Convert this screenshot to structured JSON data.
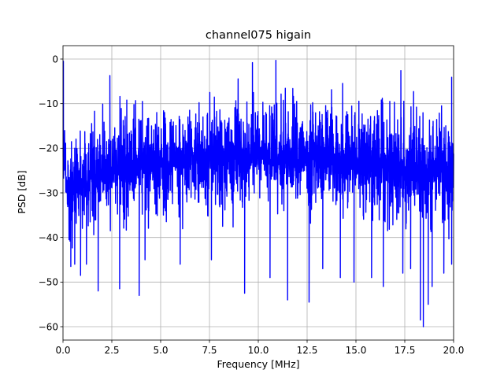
{
  "chart_data": {
    "type": "line",
    "title": "channel075 higain",
    "xlabel": "Frequency [MHz]",
    "ylabel": "PSD [dB]",
    "xlim": [
      0,
      20
    ],
    "ylim": [
      -63,
      3
    ],
    "xticks": [
      0,
      2.5,
      5,
      7.5,
      10,
      12.5,
      15,
      17.5,
      20
    ],
    "xtick_labels": [
      "0.0",
      "2.5",
      "5.0",
      "7.5",
      "10.0",
      "12.5",
      "15.0",
      "17.5",
      "20.0"
    ],
    "yticks": [
      0,
      -10,
      -20,
      -30,
      -40,
      -50,
      -60
    ],
    "ytick_labels": [
      "0",
      "−10",
      "−20",
      "−30",
      "−40",
      "−50",
      "−60"
    ],
    "grid": true,
    "legend": "none",
    "line_color": "#0000ff",
    "series": [
      {
        "style": "dense oscillating trace between upper and lower envelopes",
        "x": [
          0.0,
          0.2,
          0.5,
          1.0,
          1.5,
          2.0,
          2.5,
          3.0,
          3.5,
          4.0,
          4.5,
          5.0,
          5.5,
          6.0,
          6.5,
          7.0,
          7.5,
          8.0,
          8.5,
          9.0,
          9.5,
          10.0,
          10.5,
          11.0,
          11.5,
          12.0,
          12.5,
          13.0,
          13.5,
          14.0,
          14.5,
          15.0,
          15.5,
          16.0,
          16.5,
          17.0,
          17.5,
          18.0,
          18.5,
          19.0,
          19.5,
          20.0
        ],
        "upper": [
          -2,
          -10,
          -8.5,
          -8,
          -6,
          -5.5,
          -5,
          -4.5,
          -4.5,
          -4,
          -3,
          -2.5,
          -2.5,
          -2.2,
          -2,
          -2,
          -2,
          -1.8,
          -1.5,
          -1.5,
          -1.5,
          -1.2,
          -1.2,
          -1.2,
          -1.5,
          -1.5,
          -1.5,
          -1.8,
          -2,
          -2,
          -2.2,
          -2.5,
          -2.5,
          -3,
          -3,
          -3.2,
          -3.5,
          -4,
          -4.5,
          -4.5,
          -4.8,
          -5
        ],
        "lower": [
          -38,
          -47,
          -47,
          -45,
          -44,
          -44,
          -43,
          -43,
          -43,
          -42,
          -42,
          -42,
          -41,
          -41,
          -41,
          -41,
          -41,
          -40,
          -40,
          -40,
          -40,
          -40,
          -40,
          -41,
          -41,
          -41,
          -41,
          -41,
          -41,
          -42,
          -42,
          -42,
          -42,
          -42,
          -43,
          -43,
          -43,
          -44,
          -44,
          -44,
          -44,
          -45
        ]
      }
    ],
    "dips": [
      {
        "x": 0.4,
        "y": -46.5
      },
      {
        "x": 0.6,
        "y": -46
      },
      {
        "x": 0.9,
        "y": -48.5
      },
      {
        "x": 1.2,
        "y": -46
      },
      {
        "x": 1.8,
        "y": -52
      },
      {
        "x": 2.9,
        "y": -51.5
      },
      {
        "x": 3.9,
        "y": -53
      },
      {
        "x": 4.2,
        "y": -45
      },
      {
        "x": 6.0,
        "y": -46
      },
      {
        "x": 7.6,
        "y": -45
      },
      {
        "x": 9.3,
        "y": -52.5
      },
      {
        "x": 10.6,
        "y": -49
      },
      {
        "x": 11.5,
        "y": -54
      },
      {
        "x": 12.6,
        "y": -54.5
      },
      {
        "x": 13.3,
        "y": -47
      },
      {
        "x": 14.2,
        "y": -49
      },
      {
        "x": 14.9,
        "y": -50
      },
      {
        "x": 15.8,
        "y": -49
      },
      {
        "x": 16.4,
        "y": -51
      },
      {
        "x": 17.4,
        "y": -48
      },
      {
        "x": 17.8,
        "y": -47
      },
      {
        "x": 18.3,
        "y": -58.5
      },
      {
        "x": 18.45,
        "y": -60
      },
      {
        "x": 18.7,
        "y": -55
      },
      {
        "x": 18.9,
        "y": -51
      },
      {
        "x": 19.5,
        "y": -48
      },
      {
        "x": 19.9,
        "y": -46
      }
    ],
    "peaks": [
      {
        "x": 0.02,
        "y": -0.5
      },
      {
        "x": 2.4,
        "y": -3.7
      },
      {
        "x": 9.7,
        "y": -0.8
      },
      {
        "x": 10.9,
        "y": -0.3
      },
      {
        "x": 17.3,
        "y": -2.6
      },
      {
        "x": 19.9,
        "y": -4.1
      }
    ]
  }
}
